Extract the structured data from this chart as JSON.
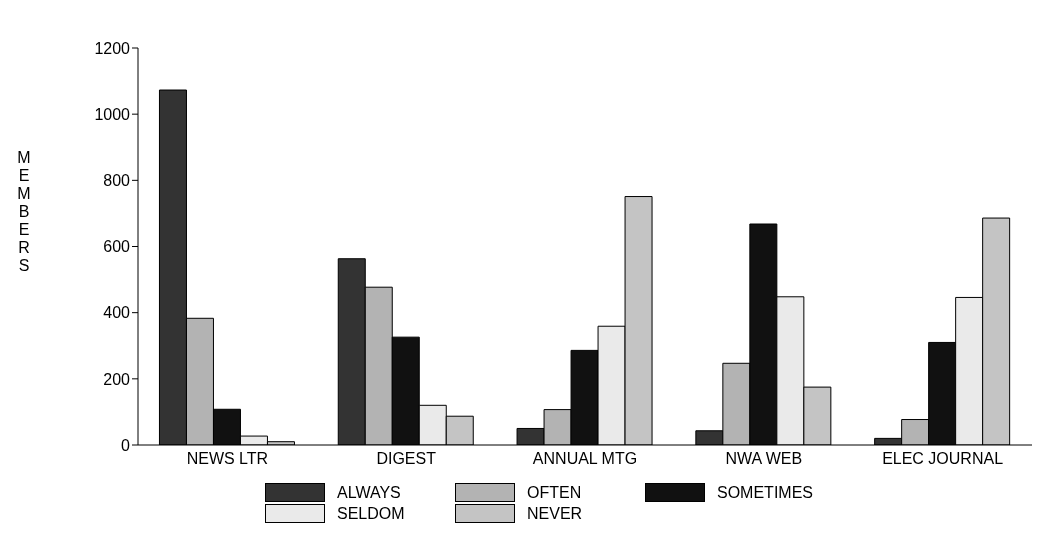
{
  "chart_data": {
    "type": "bar",
    "ylabel": "MEMBERS",
    "categories": [
      "NEWS LTR",
      "DIGEST",
      "ANNUAL MTG",
      "NWA WEB",
      "ELEC JOURNAL"
    ],
    "series": [
      {
        "name": "ALWAYS",
        "color": "#333333",
        "values": [
          1073,
          563,
          50,
          43,
          20
        ]
      },
      {
        "name": "OFTEN",
        "color": "#b3b3b3",
        "values": [
          383,
          477,
          107,
          247,
          77
        ]
      },
      {
        "name": "SOMETIMES",
        "color": "#111111",
        "values": [
          108,
          326,
          286,
          668,
          310
        ]
      },
      {
        "name": "SELDOM",
        "color": "#eaeaea",
        "values": [
          27,
          120,
          359,
          448,
          446
        ]
      },
      {
        "name": "NEVER",
        "color": "#c4c4c4",
        "values": [
          10,
          87,
          751,
          175,
          686
        ]
      }
    ],
    "ylim": [
      0,
      1200
    ],
    "yticks": [
      0,
      200,
      400,
      600,
      800,
      1000,
      1200
    ],
    "grid": false,
    "legend": "bottom"
  }
}
